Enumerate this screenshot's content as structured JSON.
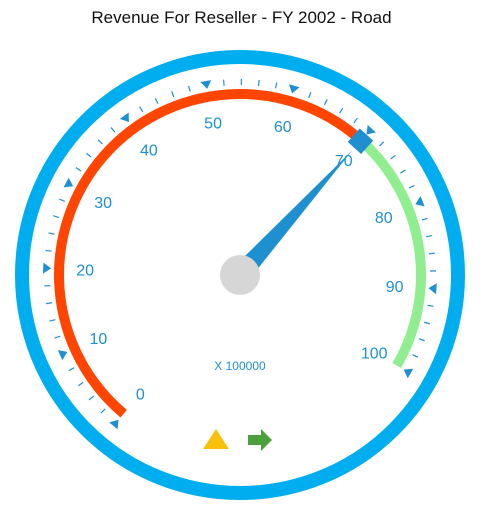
{
  "title": "Revenue For Reseller - FY 2002 - Road",
  "chart_data": {
    "type": "gauge",
    "title": "Revenue For Reseller - FY 2002 - Road",
    "scale_min": 0,
    "scale_max": 100,
    "major_ticks": [
      "0",
      "10",
      "20",
      "30",
      "40",
      "50",
      "60",
      "70",
      "80",
      "90",
      "100"
    ],
    "minor_interval": 2,
    "unit_label": "X 100000",
    "value": 70,
    "ranges": [
      {
        "from": 0,
        "to": 70,
        "color": "#ff4500"
      },
      {
        "from": 70,
        "to": 100,
        "color": "#90ee90"
      }
    ],
    "frame_color": "#00aeef",
    "needle_color": "#1e8fd0",
    "cap_color": "#d6d6d6",
    "tick_color": "#1e8fd0"
  },
  "indicators": [
    {
      "name": "warning-triangle-icon",
      "color": "#f9c00c"
    },
    {
      "name": "trend-arrow-right-icon",
      "color": "#4aa03a"
    }
  ]
}
